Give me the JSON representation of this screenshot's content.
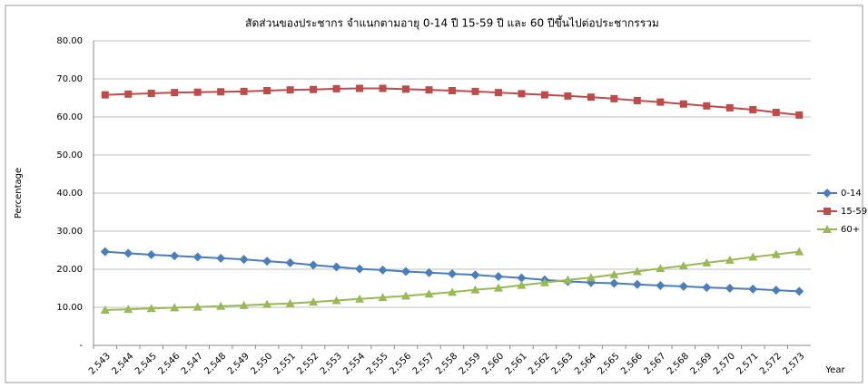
{
  "chart_data": {
    "type": "line",
    "title": "สัดส่วนของประชากร จำแนกตามอายุ 0-14 ปี 15-59 ปี และ 60 ปีขึ้นไปต่อประชากรรวม",
    "y_label": "Percentage",
    "x_label": "Year",
    "categories": [
      "2,543",
      "2,544",
      "2,545",
      "2,546",
      "2,547",
      "2,548",
      "2,549",
      "2,550",
      "2,551",
      "2,552",
      "2,553",
      "2,554",
      "2,555",
      "2,556",
      "2,557",
      "2,558",
      "2,559",
      "2,560",
      "2,561",
      "2,562",
      "2,563",
      "2,564",
      "2,565",
      "2,566",
      "2,567",
      "2,568",
      "2,569",
      "2,570",
      "2,571",
      "2,572",
      "2,573"
    ],
    "series": [
      {
        "name": "0-14",
        "color": "#4a7ebb",
        "marker": "diamond",
        "values": [
          24.6,
          24.2,
          23.8,
          23.5,
          23.2,
          22.9,
          22.6,
          22.1,
          21.7,
          21.1,
          20.6,
          20.1,
          19.8,
          19.4,
          19.1,
          18.8,
          18.5,
          18.1,
          17.7,
          17.2,
          16.8,
          16.5,
          16.3,
          16.0,
          15.7,
          15.5,
          15.2,
          15.0,
          14.8,
          14.5,
          14.2
        ]
      },
      {
        "name": "15-59",
        "color": "#be4b48",
        "marker": "square",
        "values": [
          65.8,
          66.0,
          66.2,
          66.4,
          66.5,
          66.6,
          66.7,
          66.9,
          67.1,
          67.2,
          67.4,
          67.5,
          67.5,
          67.3,
          67.1,
          66.9,
          66.7,
          66.4,
          66.1,
          65.8,
          65.5,
          65.2,
          64.8,
          64.3,
          63.9,
          63.4,
          62.9,
          62.4,
          61.9,
          61.2,
          60.5
        ]
      },
      {
        "name": "60+",
        "color": "#98b954",
        "marker": "triangle",
        "values": [
          9.3,
          9.5,
          9.7,
          9.9,
          10.1,
          10.3,
          10.5,
          10.8,
          11.0,
          11.4,
          11.8,
          12.2,
          12.6,
          13.0,
          13.5,
          14.0,
          14.6,
          15.1,
          15.8,
          16.5,
          17.2,
          17.8,
          18.6,
          19.4,
          20.2,
          20.9,
          21.7,
          22.4,
          23.2,
          23.9,
          24.6
        ]
      }
    ],
    "ylim": [
      0,
      80
    ],
    "yticks": [
      {
        "value": 0,
        "label": "-"
      },
      {
        "value": 10,
        "label": "10.00"
      },
      {
        "value": 20,
        "label": "20.00"
      },
      {
        "value": 30,
        "label": "30.00"
      },
      {
        "value": 40,
        "label": "40.00"
      },
      {
        "value": 50,
        "label": "50.00"
      },
      {
        "value": 60,
        "label": "60.00"
      },
      {
        "value": 70,
        "label": "70.00"
      },
      {
        "value": 80,
        "label": "80.00"
      }
    ],
    "grid": true,
    "legend": "right"
  }
}
